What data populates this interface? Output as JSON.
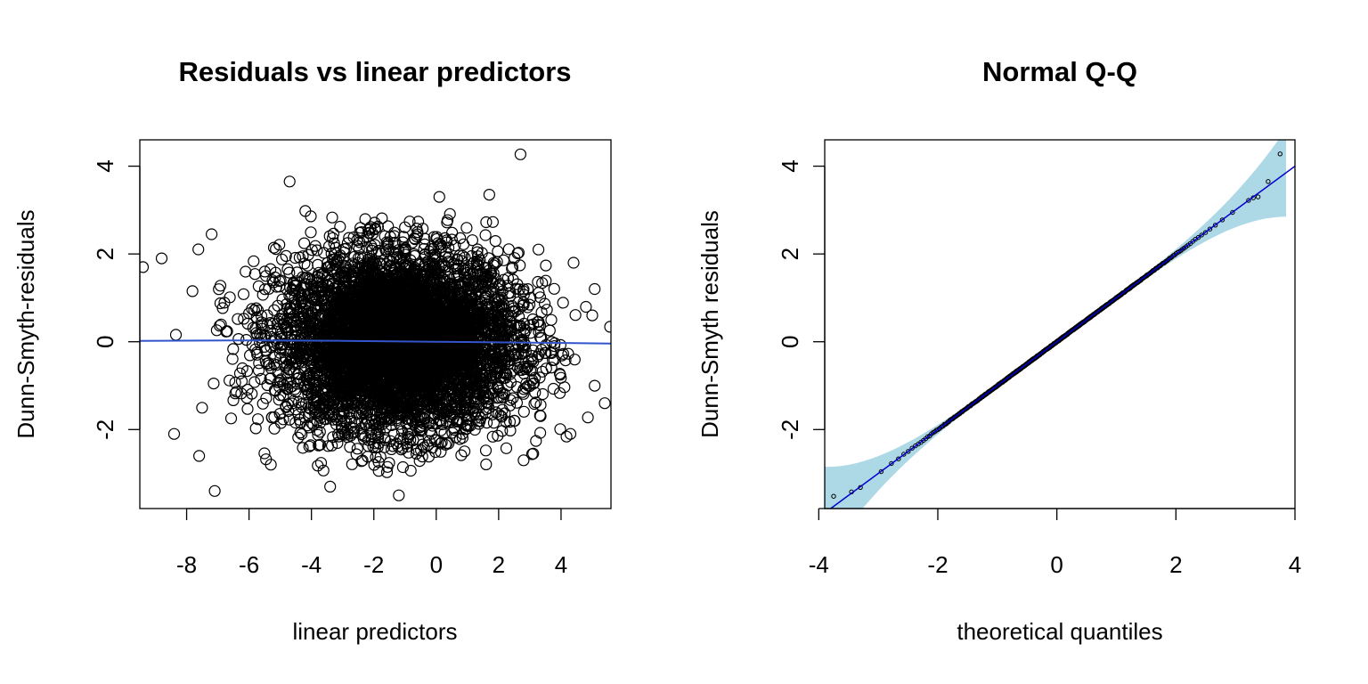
{
  "chart_data": [
    {
      "type": "scatter",
      "title": "Residuals vs linear predictors",
      "xlabel": "linear predictors",
      "ylabel": "Dunn-Smyth-residuals",
      "xlim": [
        -9.5,
        5.6
      ],
      "ylim": [
        -3.8,
        4.6
      ],
      "xticks": [
        -8,
        -6,
        -4,
        -2,
        0,
        2,
        4
      ],
      "yticks": [
        -2,
        0,
        2,
        4
      ],
      "grid": false,
      "marker": "open-circle",
      "n_points": 6000,
      "point_cloud": {
        "x_center": -1.2,
        "x_sd": 1.9,
        "y_center": 0.0,
        "y_sd": 1.0
      },
      "outliers": [
        {
          "x": 2.7,
          "y": 4.27
        },
        {
          "x": -4.7,
          "y": 3.65
        },
        {
          "x": -7.1,
          "y": -3.4
        },
        {
          "x": -1.2,
          "y": -3.5
        },
        {
          "x": -3.4,
          "y": -3.3
        },
        {
          "x": -9.4,
          "y": 1.7
        },
        {
          "x": 5.4,
          "y": -1.4
        },
        {
          "x": -8.4,
          "y": -2.1
        },
        {
          "x": -7.6,
          "y": -2.6
        },
        {
          "x": 1.7,
          "y": 3.35
        },
        {
          "x": 0.1,
          "y": 3.3
        },
        {
          "x": -8.8,
          "y": 1.9
        },
        {
          "x": 4.4,
          "y": 1.8
        },
        {
          "x": -5.3,
          "y": -2.8
        },
        {
          "x": 2.8,
          "y": -2.7
        },
        {
          "x": 4.3,
          "y": -2.1
        },
        {
          "x": -7.2,
          "y": 2.45
        },
        {
          "x": 5.0,
          "y": 0.6
        }
      ],
      "smooth_line": {
        "x": [
          -9.5,
          -6,
          -3,
          0,
          3,
          5.6
        ],
        "y": [
          0.02,
          0.03,
          0.02,
          0.0,
          -0.02,
          -0.04
        ],
        "color": "#3355cc"
      },
      "colors": {
        "points": "#000000",
        "smooth": "#3355cc"
      }
    },
    {
      "type": "scatter",
      "title": "Normal Q-Q",
      "xlabel": "theoretical quantiles",
      "ylabel": "Dunn-Smyth residuals",
      "xlim": [
        -3.9,
        4.0
      ],
      "ylim": [
        -3.8,
        4.6
      ],
      "xticks": [
        -4,
        -2,
        0,
        2,
        4
      ],
      "yticks": [
        -2,
        0,
        2,
        4
      ],
      "grid": false,
      "marker": "small-open-circle",
      "n_points": 6000,
      "qq_range": [
        -3.75,
        3.75
      ],
      "reference_line": {
        "intercept": 0.0,
        "slope": 1.0,
        "color": "#0000cc"
      },
      "envelope_color": "#add8e6",
      "tail_points": [
        {
          "x": -3.75,
          "y": -3.52
        },
        {
          "x": -3.45,
          "y": -3.42
        },
        {
          "x": -3.3,
          "y": -3.32
        },
        {
          "x": 3.55,
          "y": 3.65
        },
        {
          "x": 3.75,
          "y": 4.28
        },
        {
          "x": 3.38,
          "y": 3.3
        },
        {
          "x": 3.3,
          "y": 3.28
        },
        {
          "x": 3.22,
          "y": 3.22
        }
      ],
      "colors": {
        "points": "#000000",
        "line": "#0000cc",
        "envelope": "#add8e6"
      }
    }
  ]
}
